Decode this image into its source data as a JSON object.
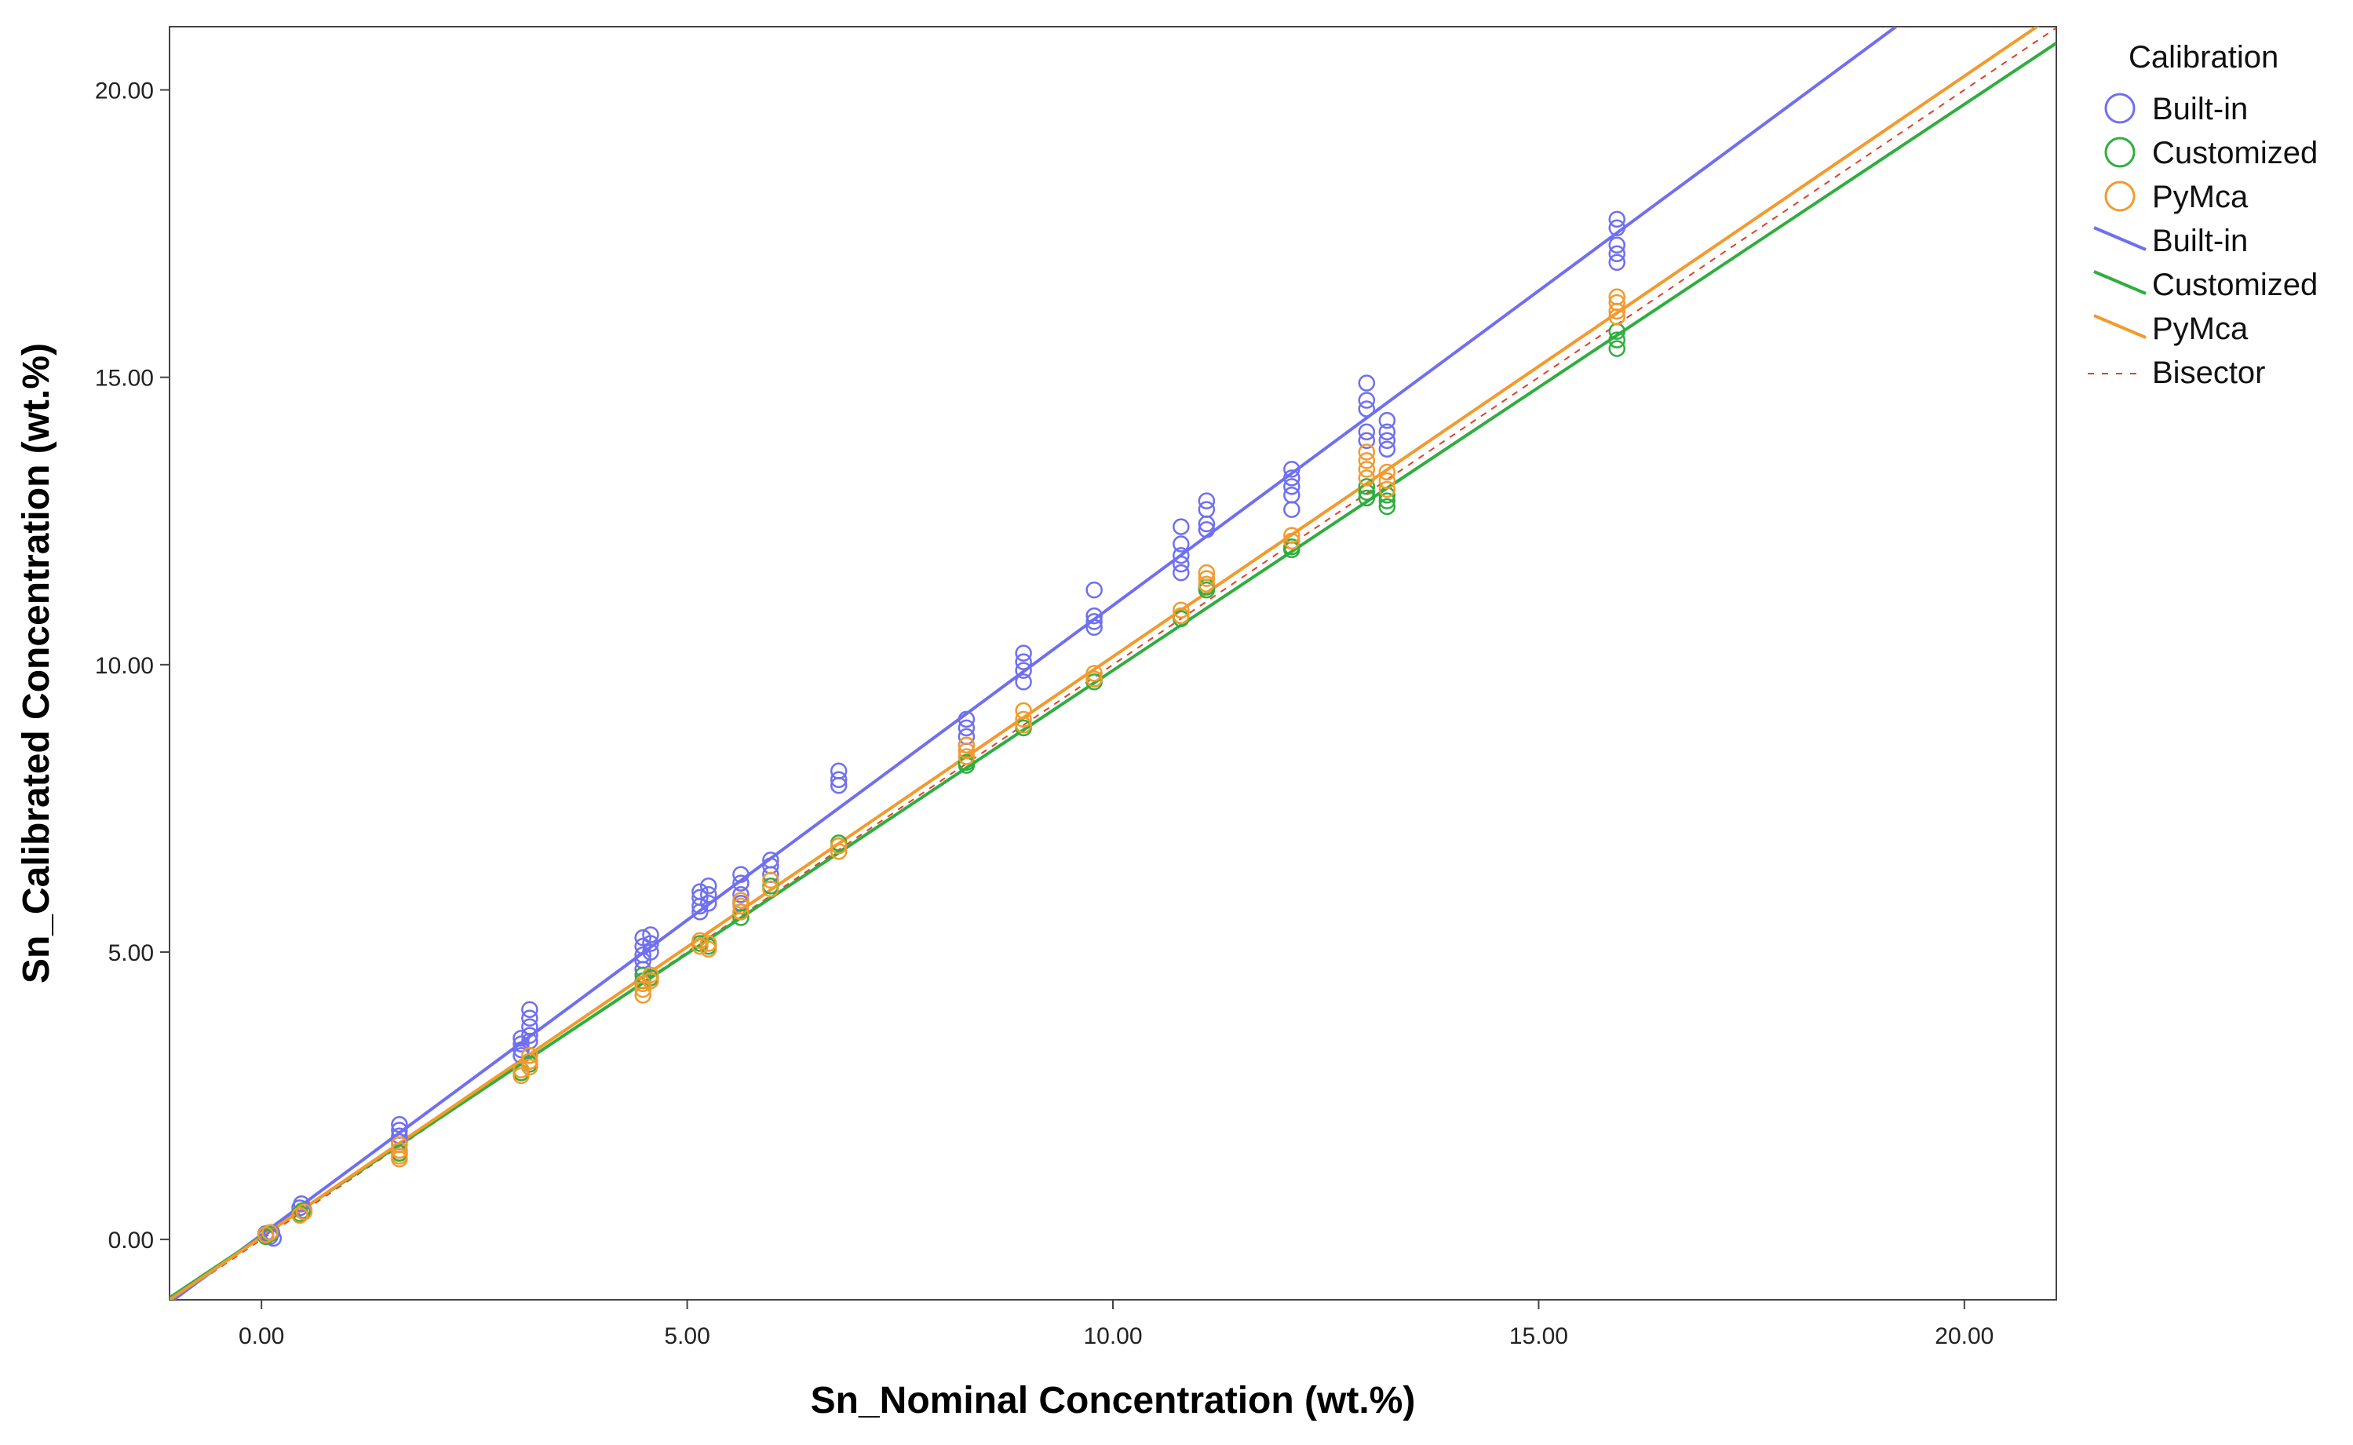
{
  "chart_data": {
    "type": "scatter",
    "xlabel": "Sn_Nominal Concentration (wt.%)",
    "ylabel": "Sn_Calibrated Concentration (wt.%)",
    "xlim": [
      -1.08,
      21.08
    ],
    "ylim": [
      -1.05,
      21.1
    ],
    "xticks": [
      0,
      5,
      10,
      15,
      20
    ],
    "yticks": [
      0,
      5,
      10,
      15,
      20
    ],
    "tick_labels_x": [
      "0.00",
      "5.00",
      "10.00",
      "15.00",
      "20.00"
    ],
    "tick_labels_y": [
      "0.00",
      "5.00",
      "10.00",
      "15.00",
      "20.00"
    ],
    "grid": false,
    "legend": {
      "title": "Calibration",
      "position": "right",
      "entries": [
        {
          "label": "Built-in",
          "kind": "marker",
          "color": "#6f6ff0"
        },
        {
          "label": "Customized",
          "kind": "marker",
          "color": "#2fae3f"
        },
        {
          "label": "PyMca",
          "kind": "marker",
          "color": "#f39a2d"
        },
        {
          "label": "Built-in",
          "kind": "line",
          "color": "#6f6ff0"
        },
        {
          "label": "Customized",
          "kind": "line",
          "color": "#2fae3f"
        },
        {
          "label": "PyMca",
          "kind": "line",
          "color": "#f39a2d"
        },
        {
          "label": "Bisector",
          "kind": "dash",
          "color": "#e0402a"
        }
      ]
    },
    "series": [
      {
        "name": "Built-in",
        "color": "#6f6ff0",
        "points": [
          [
            0.05,
            0.1
          ],
          [
            0.1,
            0.05
          ],
          [
            0.12,
            0.12
          ],
          [
            0.14,
            0.02
          ],
          [
            0.45,
            0.55
          ],
          [
            0.47,
            0.62
          ],
          [
            0.5,
            0.5
          ],
          [
            1.62,
            2.0
          ],
          [
            1.62,
            1.9
          ],
          [
            1.62,
            1.8
          ],
          [
            1.62,
            1.7
          ],
          [
            3.05,
            3.5
          ],
          [
            3.05,
            3.4
          ],
          [
            3.05,
            3.3
          ],
          [
            3.05,
            3.2
          ],
          [
            3.15,
            4.0
          ],
          [
            3.15,
            3.85
          ],
          [
            3.15,
            3.7
          ],
          [
            3.15,
            3.55
          ],
          [
            3.15,
            3.45
          ],
          [
            4.48,
            5.25
          ],
          [
            4.48,
            5.1
          ],
          [
            4.48,
            4.95
          ],
          [
            4.48,
            4.85
          ],
          [
            4.48,
            4.7
          ],
          [
            4.57,
            5.3
          ],
          [
            4.57,
            5.15
          ],
          [
            4.57,
            5.0
          ],
          [
            5.15,
            6.05
          ],
          [
            5.15,
            5.95
          ],
          [
            5.15,
            5.8
          ],
          [
            5.15,
            5.7
          ],
          [
            5.25,
            6.15
          ],
          [
            5.25,
            6.0
          ],
          [
            5.25,
            5.85
          ],
          [
            5.63,
            6.35
          ],
          [
            5.63,
            6.2
          ],
          [
            5.63,
            6.0
          ],
          [
            5.63,
            5.85
          ],
          [
            5.98,
            6.6
          ],
          [
            5.98,
            6.5
          ],
          [
            5.98,
            6.35
          ],
          [
            6.78,
            8.15
          ],
          [
            6.78,
            8.0
          ],
          [
            6.78,
            7.9
          ],
          [
            8.28,
            9.05
          ],
          [
            8.28,
            8.9
          ],
          [
            8.28,
            8.75
          ],
          [
            8.28,
            8.6
          ],
          [
            8.95,
            10.2
          ],
          [
            8.95,
            10.05
          ],
          [
            8.95,
            9.9
          ],
          [
            8.95,
            9.7
          ],
          [
            9.78,
            11.3
          ],
          [
            9.78,
            10.85
          ],
          [
            9.78,
            10.75
          ],
          [
            9.78,
            10.65
          ],
          [
            10.8,
            12.4
          ],
          [
            10.8,
            12.1
          ],
          [
            10.8,
            11.9
          ],
          [
            10.8,
            11.75
          ],
          [
            10.8,
            11.6
          ],
          [
            11.1,
            12.85
          ],
          [
            11.1,
            12.7
          ],
          [
            11.1,
            12.45
          ],
          [
            11.1,
            12.35
          ],
          [
            12.1,
            13.4
          ],
          [
            12.1,
            13.25
          ],
          [
            12.1,
            13.1
          ],
          [
            12.1,
            12.95
          ],
          [
            12.1,
            12.7
          ],
          [
            12.98,
            14.9
          ],
          [
            12.98,
            14.6
          ],
          [
            12.98,
            14.45
          ],
          [
            12.98,
            14.05
          ],
          [
            12.98,
            13.9
          ],
          [
            13.22,
            14.25
          ],
          [
            13.22,
            14.05
          ],
          [
            13.22,
            13.9
          ],
          [
            13.22,
            13.75
          ],
          [
            15.92,
            17.75
          ],
          [
            15.92,
            17.6
          ],
          [
            15.92,
            17.3
          ],
          [
            15.92,
            17.15
          ],
          [
            15.92,
            17.0
          ]
        ]
      },
      {
        "name": "Customized",
        "color": "#2fae3f",
        "points": [
          [
            0.05,
            0.05
          ],
          [
            0.1,
            0.1
          ],
          [
            0.45,
            0.45
          ],
          [
            0.48,
            0.5
          ],
          [
            1.62,
            1.55
          ],
          [
            1.62,
            1.5
          ],
          [
            3.05,
            2.9
          ],
          [
            3.15,
            3.05
          ],
          [
            3.15,
            3.1
          ],
          [
            4.48,
            4.6
          ],
          [
            4.48,
            4.5
          ],
          [
            4.57,
            4.55
          ],
          [
            5.15,
            5.15
          ],
          [
            5.25,
            5.1
          ],
          [
            5.63,
            5.6
          ],
          [
            5.63,
            5.7
          ],
          [
            5.98,
            6.15
          ],
          [
            6.78,
            6.9
          ],
          [
            6.78,
            6.85
          ],
          [
            8.28,
            8.25
          ],
          [
            8.28,
            8.3
          ],
          [
            8.95,
            8.9
          ],
          [
            9.78,
            9.7
          ],
          [
            9.78,
            9.75
          ],
          [
            10.8,
            10.8
          ],
          [
            10.8,
            10.85
          ],
          [
            11.1,
            11.3
          ],
          [
            11.1,
            11.35
          ],
          [
            12.1,
            12.0
          ],
          [
            12.1,
            12.05
          ],
          [
            12.98,
            12.9
          ],
          [
            12.98,
            13.0
          ],
          [
            12.98,
            13.1
          ],
          [
            13.22,
            12.75
          ],
          [
            13.22,
            12.85
          ],
          [
            13.22,
            12.95
          ],
          [
            15.92,
            15.5
          ],
          [
            15.92,
            15.65
          ],
          [
            15.92,
            15.8
          ]
        ]
      },
      {
        "name": "PyMca",
        "color": "#f39a2d",
        "points": [
          [
            0.05,
            0.08
          ],
          [
            0.1,
            0.12
          ],
          [
            0.45,
            0.42
          ],
          [
            0.5,
            0.48
          ],
          [
            1.62,
            1.65
          ],
          [
            1.62,
            1.55
          ],
          [
            1.62,
            1.45
          ],
          [
            1.62,
            1.4
          ],
          [
            3.05,
            2.95
          ],
          [
            3.05,
            2.85
          ],
          [
            3.15,
            3.2
          ],
          [
            3.15,
            3.1
          ],
          [
            3.15,
            3.0
          ],
          [
            4.48,
            4.45
          ],
          [
            4.48,
            4.35
          ],
          [
            4.48,
            4.25
          ],
          [
            4.57,
            4.6
          ],
          [
            4.57,
            4.5
          ],
          [
            5.15,
            5.2
          ],
          [
            5.15,
            5.1
          ],
          [
            5.25,
            5.15
          ],
          [
            5.25,
            5.05
          ],
          [
            5.63,
            5.9
          ],
          [
            5.63,
            5.8
          ],
          [
            5.63,
            5.7
          ],
          [
            5.98,
            6.25
          ],
          [
            5.98,
            6.1
          ],
          [
            6.78,
            6.85
          ],
          [
            6.78,
            6.75
          ],
          [
            8.28,
            8.6
          ],
          [
            8.28,
            8.5
          ],
          [
            8.28,
            8.4
          ],
          [
            8.95,
            9.2
          ],
          [
            8.95,
            9.05
          ],
          [
            8.95,
            8.95
          ],
          [
            9.78,
            9.85
          ],
          [
            9.78,
            9.75
          ],
          [
            10.8,
            10.95
          ],
          [
            10.8,
            10.85
          ],
          [
            11.1,
            11.6
          ],
          [
            11.1,
            11.5
          ],
          [
            11.1,
            11.4
          ],
          [
            12.1,
            12.25
          ],
          [
            12.1,
            12.15
          ],
          [
            12.98,
            13.7
          ],
          [
            12.98,
            13.55
          ],
          [
            12.98,
            13.4
          ],
          [
            12.98,
            13.25
          ],
          [
            13.22,
            13.35
          ],
          [
            13.22,
            13.2
          ],
          [
            13.22,
            13.05
          ],
          [
            15.92,
            16.4
          ],
          [
            15.92,
            16.3
          ],
          [
            15.92,
            16.15
          ],
          [
            15.92,
            16.05
          ]
        ]
      }
    ],
    "fit_lines": [
      {
        "name": "Built-in",
        "color": "#6f6ff0",
        "slope": 1.095,
        "intercept": 0.08
      },
      {
        "name": "Customized",
        "color": "#2fae3f",
        "slope": 0.985,
        "intercept": 0.05
      },
      {
        "name": "PyMca",
        "color": "#f39a2d",
        "slope": 1.01,
        "intercept": 0.04
      }
    ],
    "bisector": {
      "name": "Bisector",
      "color": "#e0402a",
      "slope": 1.0,
      "intercept": 0.0
    }
  }
}
